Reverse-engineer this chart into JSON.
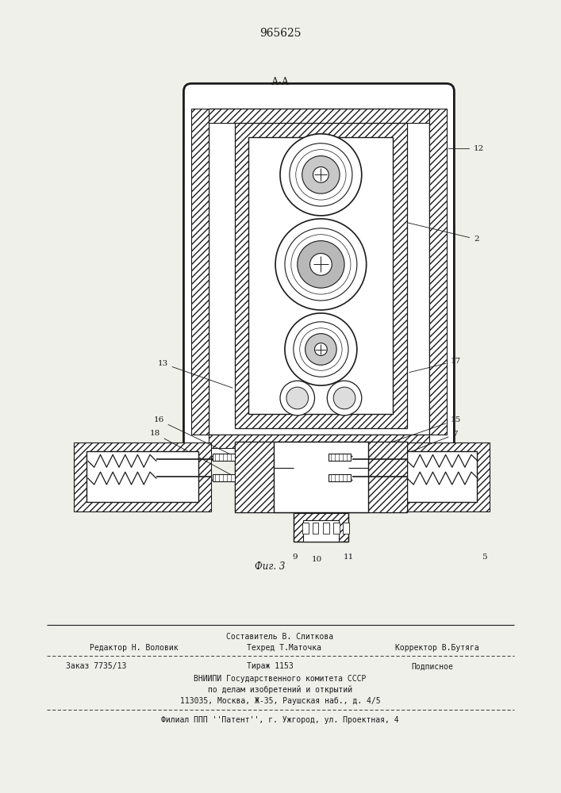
{
  "patent_number": "965625",
  "section_label": "А-А",
  "fig_label": "Фиг. 3",
  "bg_color": "#f0f0eb",
  "line_color": "#1a1a1a",
  "footer": {
    "line1": "Составитель В. Слиткова",
    "line2_left": "Редактор Н. Воловик",
    "line2_mid": "Техред Т.Маточка",
    "line2_right": "Корректор В.Бутяга",
    "line3": "Заказ 7735/13           Тираж 1153                  Подписное",
    "line4": "ВНИИПИ Государственного комитета СССР",
    "line5": "по делам изобретений и открытий",
    "line6": "113035, Москва, Ж-35, Раушская наб., д. 4/5",
    "line7": "Филиал ППП ''Патент'', г. Ужгород, ул. Проектная, 4"
  }
}
